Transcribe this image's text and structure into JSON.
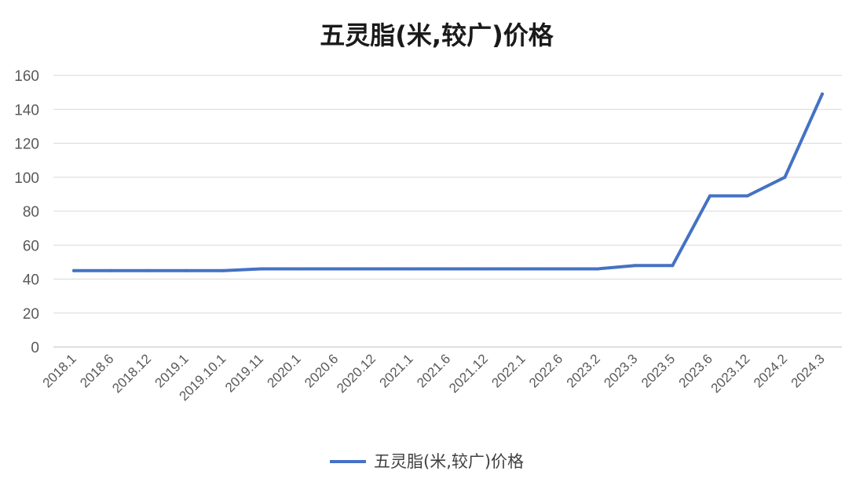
{
  "chart_data": {
    "type": "line",
    "title": "五灵脂(米,较广)价格",
    "xlabel": "",
    "ylabel": "",
    "categories": [
      "2018.1",
      "2018.6",
      "2018.12",
      "2019.1",
      "2019.10.1",
      "2019.11",
      "2020.1",
      "2020.6",
      "2020.12",
      "2021.1",
      "2021.6",
      "2021.12",
      "2022.1",
      "2022.6",
      "2023.2",
      "2023.3",
      "2023.5",
      "2023.6",
      "2023.12",
      "2024.2",
      "2024.3"
    ],
    "series": [
      {
        "name": "五灵脂(米,较广)价格",
        "values": [
          45,
          45,
          45,
          45,
          45,
          46,
          46,
          46,
          46,
          46,
          46,
          46,
          46,
          46,
          46,
          48,
          48,
          89,
          89,
          100,
          149
        ],
        "color": "#4472c4"
      }
    ],
    "yticks": [
      0,
      20,
      40,
      60,
      80,
      100,
      120,
      140,
      160
    ],
    "ylim": [
      0,
      160
    ],
    "grid": true,
    "legend": "bottom-center"
  }
}
